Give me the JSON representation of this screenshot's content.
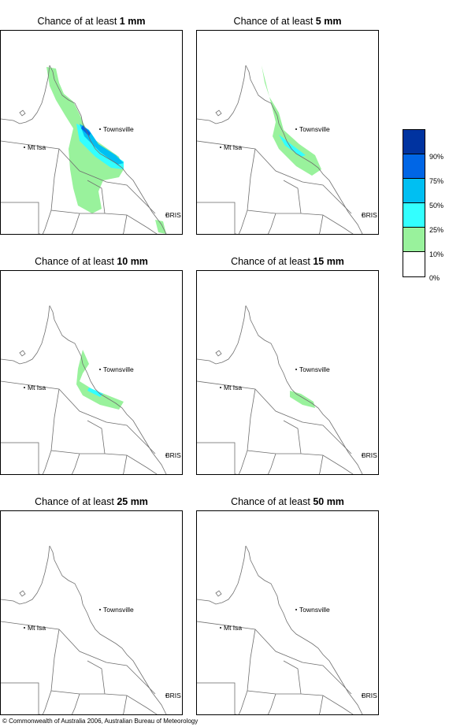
{
  "panels": [
    {
      "title_prefix": "Chance of at least ",
      "threshold": "1 mm",
      "coverage": "full"
    },
    {
      "title_prefix": "Chance of at least ",
      "threshold": "5 mm",
      "coverage": "medium"
    },
    {
      "title_prefix": "Chance of at least ",
      "threshold": "10 mm",
      "coverage": "small"
    },
    {
      "title_prefix": "Chance of at least ",
      "threshold": "15 mm",
      "coverage": "tiny"
    },
    {
      "title_prefix": "Chance of at least ",
      "threshold": "25 mm",
      "coverage": "none"
    },
    {
      "title_prefix": "Chance of at least ",
      "threshold": "50 mm",
      "coverage": "none"
    }
  ],
  "places": {
    "townsville": "Townsville",
    "mt_isa": "Mt Isa",
    "bris": "BRIS"
  },
  "legend": {
    "labels": [
      "90%",
      "75%",
      "50%",
      "25%",
      "10%",
      "0%"
    ],
    "colors": [
      "#0033a0",
      "#0066e6",
      "#00bff2",
      "#33ffff",
      "#99f29c",
      "#ffffff"
    ]
  },
  "copyright": "© Commonwealth of Australia 2006, Australian Bureau of Meteorology"
}
